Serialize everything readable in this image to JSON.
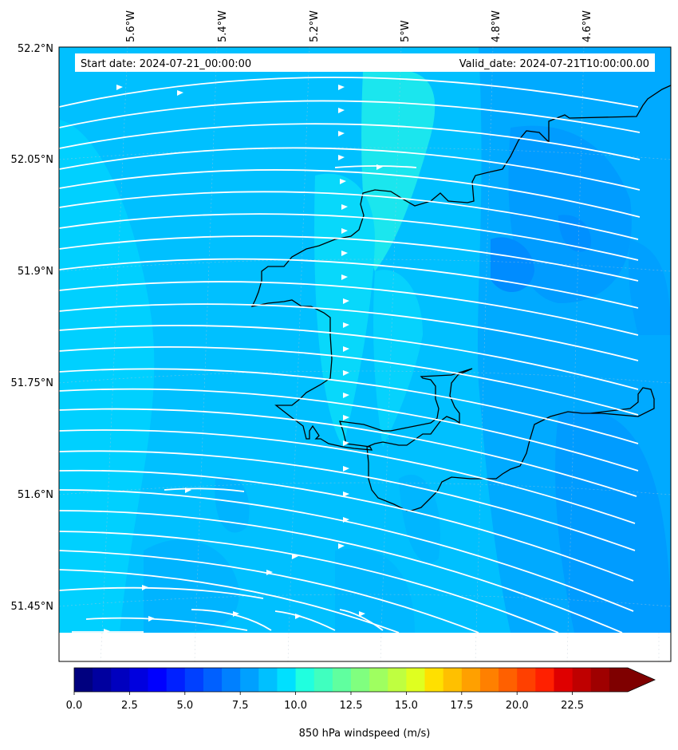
{
  "header": {
    "start_date": "Start date: 2024-07-21_00:00:00",
    "valid_date": "Valid_date: 2024-07-21T10:00:00.00"
  },
  "map": {
    "projection": "lambert-conformal",
    "field": "850 hPa windspeed",
    "overlay": "streamlines",
    "streamline_color": "#ffffff",
    "coastline_color": "#000000",
    "gridlines": true,
    "lon_labels": [
      "5.6°W",
      "5.4°W",
      "5.2°W",
      "5°W",
      "4.8°W",
      "4.6°W"
    ],
    "lat_labels": [
      "52.2°N",
      "52.05°N",
      "51.9°N",
      "51.75°N",
      "51.6°N",
      "51.45°N"
    ]
  },
  "colorbar": {
    "label": "850 hPa windspeed (m/s)",
    "colormap": "jet",
    "min": 0,
    "max": 25,
    "extend": "max",
    "tick_labels": [
      "0.0",
      "2.5",
      "5.0",
      "7.5",
      "10.0",
      "12.5",
      "15.0",
      "17.5",
      "20.0",
      "22.5"
    ],
    "colors": [
      "#00007f",
      "#00009f",
      "#0000bf",
      "#0000df",
      "#0000ff",
      "#0020ff",
      "#0040ff",
      "#0060ff",
      "#0080ff",
      "#00a0ff",
      "#00c0ff",
      "#00e0ff",
      "#20ffdf",
      "#40ffbf",
      "#60ff9f",
      "#80ff7f",
      "#9fff60",
      "#bfff40",
      "#dfff20",
      "#ffe000",
      "#ffc000",
      "#ffa000",
      "#ff8000",
      "#ff6000",
      "#ff4000",
      "#ff2000",
      "#df0000",
      "#bf0000",
      "#9f0000",
      "#7f0000"
    ],
    "over_color": "#7f0000"
  }
}
